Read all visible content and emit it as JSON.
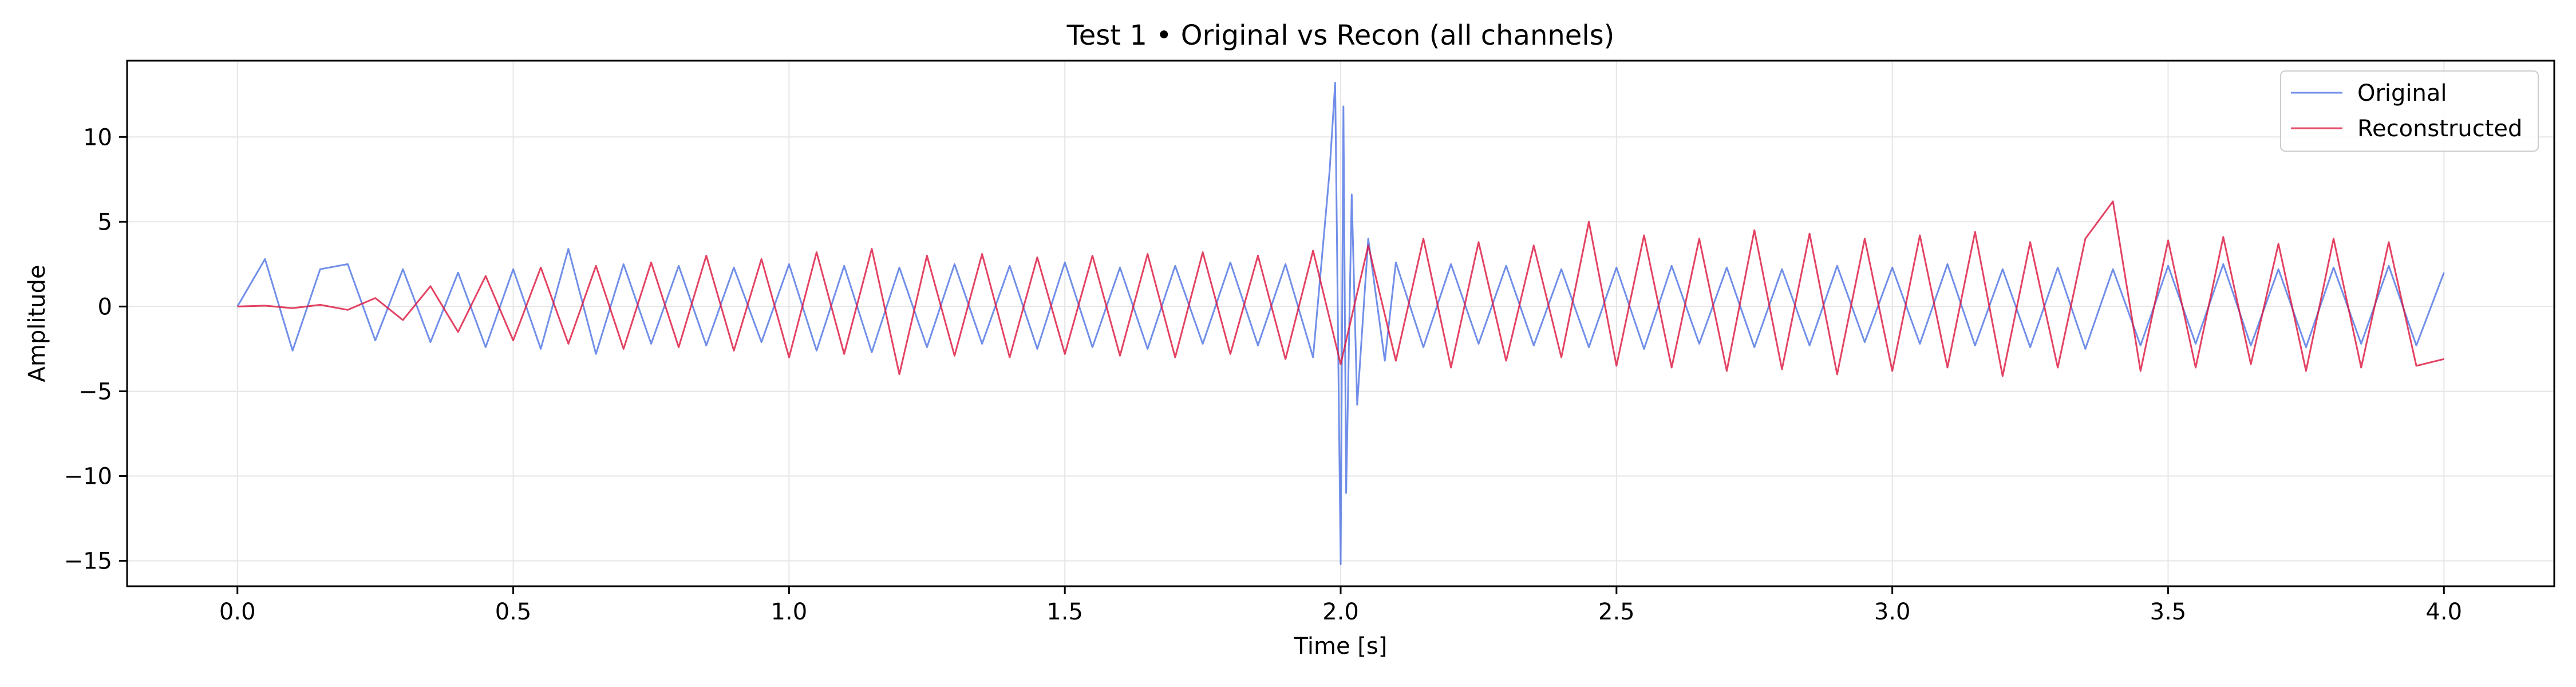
{
  "chart_data": {
    "type": "line",
    "title": "Test 1 • Original vs Recon (all channels)",
    "xlabel": "Time [s]",
    "ylabel": "Amplitude",
    "xlim": [
      -0.2,
      4.2
    ],
    "ylim": [
      -16.5,
      14.5
    ],
    "x_ticks": [
      0.0,
      0.5,
      1.0,
      1.5,
      2.0,
      2.5,
      3.0,
      3.5,
      4.0
    ],
    "x_tick_labels": [
      "0.0",
      "0.5",
      "1.0",
      "1.5",
      "2.0",
      "2.5",
      "3.0",
      "3.5",
      "4.0"
    ],
    "y_ticks": [
      10,
      5,
      0,
      -5,
      -10,
      -15
    ],
    "y_tick_labels": [
      "10",
      "5",
      "0",
      "−5",
      "−10",
      "−15"
    ],
    "grid": true,
    "legend_position": "top-right",
    "series": [
      {
        "name": "Original",
        "color": "#4169e1",
        "x": [
          0.0,
          0.05,
          0.1,
          0.15,
          0.2,
          0.25,
          0.3,
          0.35,
          0.4,
          0.45,
          0.5,
          0.55,
          0.6,
          0.65,
          0.7,
          0.75,
          0.8,
          0.85,
          0.9,
          0.95,
          1.0,
          1.05,
          1.1,
          1.15,
          1.2,
          1.25,
          1.3,
          1.35,
          1.4,
          1.45,
          1.5,
          1.55,
          1.6,
          1.65,
          1.7,
          1.75,
          1.8,
          1.85,
          1.9,
          1.95,
          1.98,
          1.99,
          2.0,
          2.005,
          2.01,
          2.02,
          2.03,
          2.05,
          2.08,
          2.1,
          2.15,
          2.2,
          2.25,
          2.3,
          2.35,
          2.4,
          2.45,
          2.5,
          2.55,
          2.6,
          2.65,
          2.7,
          2.75,
          2.8,
          2.85,
          2.9,
          2.95,
          3.0,
          3.05,
          3.1,
          3.15,
          3.2,
          3.25,
          3.3,
          3.35,
          3.4,
          3.45,
          3.5,
          3.55,
          3.6,
          3.65,
          3.7,
          3.75,
          3.8,
          3.85,
          3.9,
          3.95,
          4.0
        ],
        "y": [
          0.0,
          2.8,
          -2.6,
          2.2,
          2.5,
          -2.0,
          2.2,
          -2.1,
          2.0,
          -2.4,
          2.2,
          -2.5,
          3.4,
          -2.8,
          2.5,
          -2.2,
          2.4,
          -2.3,
          2.3,
          -2.1,
          2.5,
          -2.6,
          2.4,
          -2.7,
          2.3,
          -2.4,
          2.5,
          -2.2,
          2.4,
          -2.5,
          2.6,
          -2.4,
          2.3,
          -2.5,
          2.4,
          -2.2,
          2.6,
          -2.3,
          2.5,
          -3.0,
          8.0,
          13.2,
          -15.2,
          11.8,
          -11.0,
          6.6,
          -5.8,
          4.0,
          -3.2,
          2.6,
          -2.4,
          2.5,
          -2.2,
          2.4,
          -2.3,
          2.2,
          -2.4,
          2.3,
          -2.5,
          2.4,
          -2.2,
          2.3,
          -2.4,
          2.2,
          -2.3,
          2.4,
          -2.1,
          2.3,
          -2.2,
          2.5,
          -2.3,
          2.2,
          -2.4,
          2.3,
          -2.5,
          2.2,
          -2.3,
          2.4,
          -2.2,
          2.5,
          -2.3,
          2.2,
          -2.4,
          2.3,
          -2.2,
          2.4,
          -2.3,
          2.0
        ]
      },
      {
        "name": "Reconstructed",
        "color": "#dc143c",
        "x": [
          0.0,
          0.05,
          0.1,
          0.15,
          0.2,
          0.25,
          0.3,
          0.35,
          0.4,
          0.45,
          0.5,
          0.55,
          0.6,
          0.65,
          0.7,
          0.75,
          0.8,
          0.85,
          0.9,
          0.95,
          1.0,
          1.05,
          1.1,
          1.15,
          1.2,
          1.25,
          1.3,
          1.35,
          1.4,
          1.45,
          1.5,
          1.55,
          1.6,
          1.65,
          1.7,
          1.75,
          1.8,
          1.85,
          1.9,
          1.95,
          2.0,
          2.05,
          2.1,
          2.15,
          2.2,
          2.25,
          2.3,
          2.35,
          2.4,
          2.45,
          2.5,
          2.55,
          2.6,
          2.65,
          2.7,
          2.75,
          2.8,
          2.85,
          2.9,
          2.95,
          3.0,
          3.05,
          3.1,
          3.15,
          3.2,
          3.25,
          3.3,
          3.35,
          3.4,
          3.45,
          3.5,
          3.55,
          3.6,
          3.65,
          3.7,
          3.75,
          3.8,
          3.85,
          3.9,
          3.95,
          4.0
        ],
        "y": [
          0.0,
          0.05,
          -0.1,
          0.1,
          -0.2,
          0.5,
          -0.8,
          1.2,
          -1.5,
          1.8,
          -2.0,
          2.3,
          -2.2,
          2.4,
          -2.5,
          2.6,
          -2.4,
          3.0,
          -2.6,
          2.8,
          -3.0,
          3.2,
          -2.8,
          3.4,
          -4.0,
          3.0,
          -2.9,
          3.1,
          -3.0,
          2.9,
          -2.8,
          3.0,
          -2.9,
          3.1,
          -3.0,
          3.2,
          -2.8,
          3.0,
          -3.1,
          3.3,
          -3.4,
          3.6,
          -3.2,
          4.0,
          -3.6,
          3.8,
          -3.2,
          3.6,
          -3.0,
          5.0,
          -3.5,
          4.2,
          -3.6,
          4.0,
          -3.8,
          4.5,
          -3.7,
          4.3,
          -4.0,
          4.0,
          -3.8,
          4.2,
          -3.6,
          4.4,
          -4.1,
          3.8,
          -3.6,
          4.0,
          6.2,
          -3.8,
          3.9,
          -3.6,
          4.1,
          -3.4,
          3.7,
          -3.8,
          4.0,
          -3.6,
          3.8,
          -3.5,
          -3.1
        ]
      }
    ]
  }
}
